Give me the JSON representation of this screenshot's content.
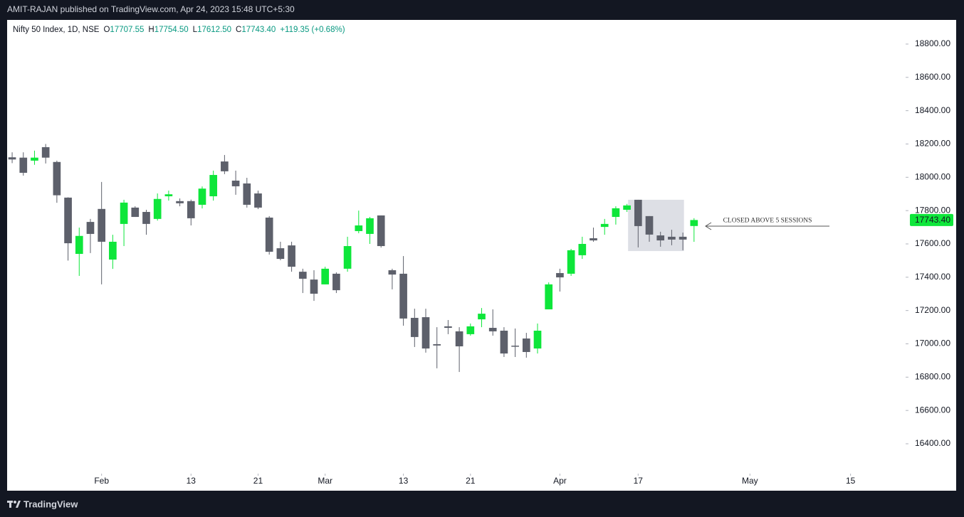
{
  "header": {
    "publisher": "AMIT-RAJAN published on TradingView.com, Apr 24, 2023 15:48 UTC+5:30"
  },
  "footer": {
    "brand": "TradingView"
  },
  "chart_data": {
    "type": "candlestick",
    "legend": {
      "symbol": "Nifty 50 Index, 1D, NSE",
      "items": [
        {
          "key": "O",
          "value": "17707.55"
        },
        {
          "key": "H",
          "value": "17754.50"
        },
        {
          "key": "L",
          "value": "17612.50"
        },
        {
          "key": "C",
          "value": "17743.40"
        }
      ],
      "change": "+119.35 (+0.68%)"
    },
    "up_color": "#0ee63a",
    "down_color": "#5d606b",
    "candles": [
      {
        "open": 18120,
        "high": 18150,
        "low": 18085,
        "close": 18107
      },
      {
        "open": 18118,
        "high": 18150,
        "low": 18010,
        "close": 18027
      },
      {
        "open": 18100,
        "high": 18160,
        "low": 18075,
        "close": 18118
      },
      {
        "open": 18181,
        "high": 18200,
        "low": 18083,
        "close": 18118
      },
      {
        "open": 18092,
        "high": 18100,
        "low": 17847,
        "close": 17892
      },
      {
        "open": 17878,
        "high": 17880,
        "low": 17500,
        "close": 17604
      },
      {
        "open": 17540,
        "high": 17698,
        "low": 17408,
        "close": 17648
      },
      {
        "open": 17732,
        "high": 17750,
        "low": 17545,
        "close": 17660
      },
      {
        "open": 17810,
        "high": 17972,
        "low": 17357,
        "close": 17613
      },
      {
        "open": 17506,
        "high": 17655,
        "low": 17450,
        "close": 17613
      },
      {
        "open": 17720,
        "high": 17865,
        "low": 17587,
        "close": 17848
      },
      {
        "open": 17818,
        "high": 17826,
        "low": 17762,
        "close": 17762
      },
      {
        "open": 17792,
        "high": 17805,
        "low": 17655,
        "close": 17720
      },
      {
        "open": 17750,
        "high": 17903,
        "low": 17740,
        "close": 17870
      },
      {
        "open": 17886,
        "high": 17920,
        "low": 17860,
        "close": 17898
      },
      {
        "open": 17857,
        "high": 17873,
        "low": 17826,
        "close": 17844
      },
      {
        "open": 17857,
        "high": 17866,
        "low": 17711,
        "close": 17754
      },
      {
        "open": 17835,
        "high": 17945,
        "low": 17813,
        "close": 17932
      },
      {
        "open": 17886,
        "high": 18040,
        "low": 17860,
        "close": 18014
      },
      {
        "open": 18095,
        "high": 18134,
        "low": 18019,
        "close": 18036
      },
      {
        "open": 17980,
        "high": 18040,
        "low": 17895,
        "close": 17946
      },
      {
        "open": 17963,
        "high": 17997,
        "low": 17818,
        "close": 17835
      },
      {
        "open": 17903,
        "high": 17920,
        "low": 17809,
        "close": 17818
      },
      {
        "open": 17758,
        "high": 17767,
        "low": 17536,
        "close": 17553
      },
      {
        "open": 17574,
        "high": 17613,
        "low": 17502,
        "close": 17510
      },
      {
        "open": 17591,
        "high": 17613,
        "low": 17433,
        "close": 17463
      },
      {
        "open": 17433,
        "high": 17451,
        "low": 17305,
        "close": 17391
      },
      {
        "open": 17386,
        "high": 17442,
        "low": 17258,
        "close": 17301
      },
      {
        "open": 17357,
        "high": 17463,
        "low": 17357,
        "close": 17451
      },
      {
        "open": 17421,
        "high": 17429,
        "low": 17305,
        "close": 17322
      },
      {
        "open": 17451,
        "high": 17643,
        "low": 17433,
        "close": 17587
      },
      {
        "open": 17677,
        "high": 17800,
        "low": 17664,
        "close": 17711
      },
      {
        "open": 17660,
        "high": 17762,
        "low": 17600,
        "close": 17754
      },
      {
        "open": 17771,
        "high": 17771,
        "low": 17578,
        "close": 17587
      },
      {
        "open": 17442,
        "high": 17451,
        "low": 17327,
        "close": 17416
      },
      {
        "open": 17421,
        "high": 17527,
        "low": 17109,
        "close": 17152
      },
      {
        "open": 17156,
        "high": 17211,
        "low": 16981,
        "close": 17041
      },
      {
        "open": 17160,
        "high": 17211,
        "low": 16947,
        "close": 16972
      },
      {
        "open": 16998,
        "high": 17100,
        "low": 16853,
        "close": 16990
      },
      {
        "open": 17105,
        "high": 17143,
        "low": 17058,
        "close": 17096
      },
      {
        "open": 17075,
        "high": 17100,
        "low": 16831,
        "close": 16985
      },
      {
        "open": 17058,
        "high": 17122,
        "low": 17049,
        "close": 17105
      },
      {
        "open": 17147,
        "high": 17215,
        "low": 17100,
        "close": 17181
      },
      {
        "open": 17096,
        "high": 17207,
        "low": 17049,
        "close": 17075
      },
      {
        "open": 17079,
        "high": 17100,
        "low": 16921,
        "close": 16942
      },
      {
        "open": 16989,
        "high": 17092,
        "low": 16921,
        "close": 16985
      },
      {
        "open": 17032,
        "high": 17066,
        "low": 16917,
        "close": 16951
      },
      {
        "open": 16972,
        "high": 17122,
        "low": 16942,
        "close": 17079
      },
      {
        "open": 17207,
        "high": 17369,
        "low": 17207,
        "close": 17357
      },
      {
        "open": 17425,
        "high": 17451,
        "low": 17314,
        "close": 17399
      },
      {
        "open": 17421,
        "high": 17570,
        "low": 17408,
        "close": 17562
      },
      {
        "open": 17532,
        "high": 17643,
        "low": 17510,
        "close": 17600
      },
      {
        "open": 17634,
        "high": 17698,
        "low": 17613,
        "close": 17621
      },
      {
        "open": 17702,
        "high": 17750,
        "low": 17655,
        "close": 17720
      },
      {
        "open": 17762,
        "high": 17826,
        "low": 17716,
        "close": 17814
      },
      {
        "open": 17805,
        "high": 17840,
        "low": 17792,
        "close": 17831
      },
      {
        "open": 17865,
        "high": 17865,
        "low": 17579,
        "close": 17707
      },
      {
        "open": 17767,
        "high": 17767,
        "low": 17613,
        "close": 17656
      },
      {
        "open": 17651,
        "high": 17673,
        "low": 17583,
        "close": 17621
      },
      {
        "open": 17643,
        "high": 17685,
        "low": 17592,
        "close": 17626
      },
      {
        "open": 17643,
        "high": 17668,
        "low": 17562,
        "close": 17626
      },
      {
        "open": 17707.55,
        "high": 17754.5,
        "low": 17612.5,
        "close": 17743.4
      }
    ],
    "xlim": [
      -0.45,
      79.8
    ],
    "xticks": [
      {
        "value": 8,
        "label": "Feb"
      },
      {
        "value": 16,
        "label": "13"
      },
      {
        "value": 22,
        "label": "21"
      },
      {
        "value": 28,
        "label": "Mar"
      },
      {
        "value": 35,
        "label": "13"
      },
      {
        "value": 41,
        "label": "21"
      },
      {
        "value": 49,
        "label": "Apr"
      },
      {
        "value": 56,
        "label": "17"
      },
      {
        "value": 66,
        "label": "May"
      },
      {
        "value": 75,
        "label": "15"
      }
    ],
    "ylim": [
      16225,
      18945
    ],
    "yticks": [
      {
        "value": 16400,
        "label": "16400.00"
      },
      {
        "value": 16600,
        "label": "16600.00"
      },
      {
        "value": 16800,
        "label": "16800.00"
      },
      {
        "value": 17000,
        "label": "17000.00"
      },
      {
        "value": 17200,
        "label": "17200.00"
      },
      {
        "value": 17400,
        "label": "17400.00"
      },
      {
        "value": 17600,
        "label": "17600.00"
      },
      {
        "value": 17800,
        "label": "17800.00"
      },
      {
        "value": 18000,
        "label": "18000.00"
      },
      {
        "value": 18200,
        "label": "18200.00"
      },
      {
        "value": 18400,
        "label": "18400.00"
      },
      {
        "value": 18600,
        "label": "18600.00"
      },
      {
        "value": 18800,
        "label": "18800.00"
      }
    ],
    "last_price": {
      "value": 17743.4,
      "label": "17743.40"
    },
    "highlight": {
      "xlim": [
        55.1,
        60.1
      ],
      "ylim": [
        17557,
        17865
      ],
      "color": "#d1d4dc"
    },
    "annotation": {
      "text": "CLOSED ABOVE 5 SESSIONS",
      "y": 17740
    }
  }
}
